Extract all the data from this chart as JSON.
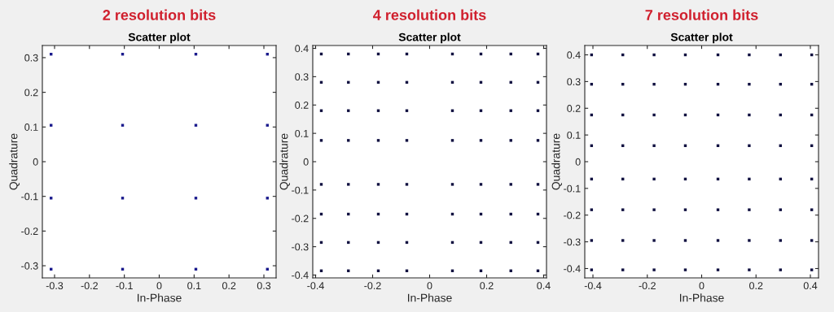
{
  "chart_data": [
    {
      "type": "scatter",
      "title": "2 resolution bits",
      "subtitle": "Scatter plot",
      "xlabel": "In-Phase",
      "ylabel": "Quadrature",
      "marker": "square",
      "grid": false,
      "legend": false,
      "xlim": [
        -0.335,
        0.335
      ],
      "ylim": [
        -0.335,
        0.335
      ],
      "xticks": [
        -0.3,
        -0.2,
        -0.1,
        0,
        0.1,
        0.2,
        0.3
      ],
      "yticks": [
        -0.3,
        -0.2,
        -0.1,
        0,
        0.1,
        0.2,
        0.3
      ],
      "series": [
        {
          "color": "#1a1a8c",
          "x": [
            -0.31,
            -0.105,
            0.105,
            0.31,
            -0.31,
            -0.105,
            0.105,
            0.31,
            -0.31,
            -0.105,
            0.105,
            0.31,
            -0.31,
            -0.105,
            0.105,
            0.31
          ],
          "values": [
            0.31,
            0.31,
            0.31,
            0.31,
            0.105,
            0.105,
            0.105,
            0.105,
            -0.105,
            -0.105,
            -0.105,
            -0.105,
            -0.31,
            -0.31,
            -0.31,
            -0.31
          ]
        }
      ]
    },
    {
      "type": "scatter",
      "title": "4 resolution bits",
      "subtitle": "Scatter plot",
      "xlabel": "In-Phase",
      "ylabel": "Quadrature",
      "marker": "square",
      "grid": false,
      "legend": false,
      "xlim": [
        -0.41,
        0.41
      ],
      "ylim": [
        -0.41,
        0.41
      ],
      "xticks": [
        -0.4,
        -0.2,
        0,
        0.2,
        0.4
      ],
      "yticks": [
        -0.4,
        -0.3,
        -0.2,
        -0.1,
        0,
        0.1,
        0.2,
        0.3,
        0.4
      ],
      "series": [
        {
          "color": "#101040",
          "x": [
            -0.38,
            -0.285,
            -0.18,
            -0.08,
            0.08,
            0.18,
            0.285,
            0.38,
            -0.38,
            -0.285,
            -0.18,
            -0.08,
            0.08,
            0.18,
            0.285,
            0.38,
            -0.38,
            -0.285,
            -0.18,
            -0.08,
            0.08,
            0.18,
            0.285,
            0.38,
            -0.38,
            -0.285,
            -0.18,
            -0.08,
            0.08,
            0.18,
            0.285,
            0.38,
            -0.38,
            -0.285,
            -0.18,
            -0.08,
            0.08,
            0.18,
            0.285,
            0.38,
            -0.38,
            -0.285,
            -0.18,
            -0.08,
            0.08,
            0.18,
            0.285,
            0.38,
            -0.38,
            -0.285,
            -0.18,
            -0.08,
            0.08,
            0.18,
            0.285,
            0.38,
            -0.38,
            -0.285,
            -0.18,
            -0.08,
            0.08,
            0.18,
            0.285,
            0.38
          ],
          "values": [
            0.38,
            0.38,
            0.38,
            0.38,
            0.38,
            0.38,
            0.38,
            0.38,
            0.28,
            0.28,
            0.28,
            0.28,
            0.28,
            0.28,
            0.28,
            0.28,
            0.18,
            0.18,
            0.18,
            0.18,
            0.18,
            0.18,
            0.18,
            0.18,
            0.075,
            0.075,
            0.075,
            0.075,
            0.075,
            0.075,
            0.075,
            0.075,
            -0.08,
            -0.08,
            -0.08,
            -0.08,
            -0.08,
            -0.08,
            -0.08,
            -0.08,
            -0.185,
            -0.185,
            -0.185,
            -0.185,
            -0.185,
            -0.185,
            -0.185,
            -0.185,
            -0.285,
            -0.285,
            -0.285,
            -0.285,
            -0.285,
            -0.285,
            -0.285,
            -0.285,
            -0.385,
            -0.385,
            -0.385,
            -0.385,
            -0.385,
            -0.385,
            -0.385,
            -0.385
          ]
        }
      ]
    },
    {
      "type": "scatter",
      "title": "7 resolution bits",
      "subtitle": "Scatter plot",
      "xlabel": "In-Phase",
      "ylabel": "Quadrature",
      "marker": "square",
      "grid": false,
      "legend": false,
      "xlim": [
        -0.43,
        0.43
      ],
      "ylim": [
        -0.435,
        0.435
      ],
      "xticks": [
        -0.4,
        -0.2,
        0,
        0.2,
        0.4
      ],
      "yticks": [
        -0.4,
        -0.3,
        -0.2,
        -0.1,
        0,
        0.1,
        0.2,
        0.3,
        0.4
      ],
      "series": [
        {
          "color": "#101040",
          "x": [
            -0.405,
            -0.29,
            -0.175,
            -0.06,
            0.06,
            0.175,
            0.29,
            0.405,
            -0.405,
            -0.29,
            -0.175,
            -0.06,
            0.06,
            0.175,
            0.29,
            0.405,
            -0.405,
            -0.29,
            -0.175,
            -0.06,
            0.06,
            0.175,
            0.29,
            0.405,
            -0.405,
            -0.29,
            -0.175,
            -0.06,
            0.06,
            0.175,
            0.29,
            0.405,
            -0.405,
            -0.29,
            -0.175,
            -0.06,
            0.06,
            0.175,
            0.29,
            0.405,
            -0.405,
            -0.29,
            -0.175,
            -0.06,
            0.06,
            0.175,
            0.29,
            0.405,
            -0.405,
            -0.29,
            -0.175,
            -0.06,
            0.06,
            0.175,
            0.29,
            0.405,
            -0.405,
            -0.29,
            -0.175,
            -0.06,
            0.06,
            0.175,
            0.29,
            0.405
          ],
          "values": [
            0.4,
            0.4,
            0.4,
            0.4,
            0.4,
            0.4,
            0.4,
            0.4,
            0.29,
            0.29,
            0.29,
            0.29,
            0.29,
            0.29,
            0.29,
            0.29,
            0.175,
            0.175,
            0.175,
            0.175,
            0.175,
            0.175,
            0.175,
            0.175,
            0.06,
            0.06,
            0.06,
            0.06,
            0.06,
            0.06,
            0.06,
            0.06,
            -0.065,
            -0.065,
            -0.065,
            -0.065,
            -0.065,
            -0.065,
            -0.065,
            -0.065,
            -0.18,
            -0.18,
            -0.18,
            -0.18,
            -0.18,
            -0.18,
            -0.18,
            -0.18,
            -0.295,
            -0.295,
            -0.295,
            -0.295,
            -0.295,
            -0.295,
            -0.295,
            -0.295,
            -0.405,
            -0.405,
            -0.405,
            -0.405,
            -0.405,
            -0.405,
            -0.405,
            -0.405
          ]
        }
      ]
    }
  ]
}
